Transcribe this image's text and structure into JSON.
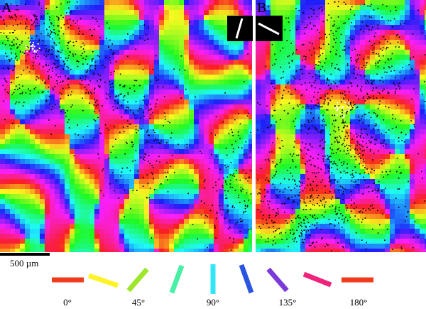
{
  "panels": [
    {
      "label": "A"
    },
    {
      "label": "B"
    }
  ],
  "scale_bar": {
    "label": "500 µm"
  },
  "legend": {
    "labels": [
      "0°",
      "45°",
      "90°",
      "135°",
      "180°"
    ]
  }
}
